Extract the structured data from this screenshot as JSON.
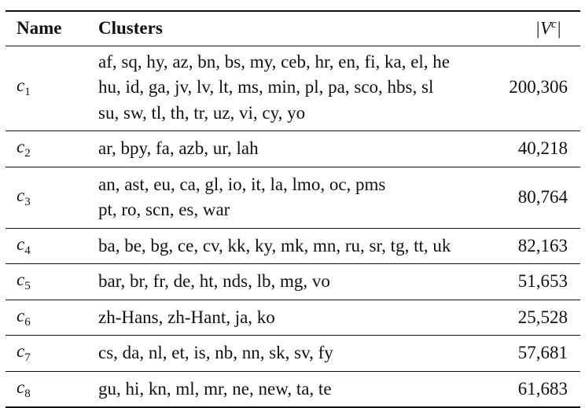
{
  "header": {
    "name": "Name",
    "clusters": "Clusters",
    "size_base": "|V",
    "size_sup": "c",
    "size_end": "|"
  },
  "rows": [
    {
      "sym": "c",
      "sub": "1",
      "lines": [
        "af, sq, hy, az, bn, bs, my, ceb, hr, en, fi, ka, el, he",
        "hu, id, ga, jv, lv, lt, ms, min, pl, pa, sco, hbs, sl",
        "su, sw, tl, th, tr, uz, vi, cy, yo"
      ],
      "size": "200,306"
    },
    {
      "sym": "c",
      "sub": "2",
      "lines": [
        "ar, bpy, fa, azb, ur, lah"
      ],
      "size": "40,218"
    },
    {
      "sym": "c",
      "sub": "3",
      "lines": [
        "an, ast, eu, ca, gl, io, it, la, lmo, oc, pms",
        "pt, ro, scn, es, war"
      ],
      "size": "80,764"
    },
    {
      "sym": "c",
      "sub": "4",
      "lines": [
        "ba, be, bg, ce, cv, kk, ky, mk, mn, ru, sr, tg, tt, uk"
      ],
      "size": "82,163"
    },
    {
      "sym": "c",
      "sub": "5",
      "lines": [
        "bar, br, fr, de, ht, nds, lb, mg, vo"
      ],
      "size": "51,653"
    },
    {
      "sym": "c",
      "sub": "6",
      "lines": [
        "zh-Hans, zh-Hant, ja, ko"
      ],
      "size": "25,528"
    },
    {
      "sym": "c",
      "sub": "7",
      "lines": [
        "cs, da, nl, et, is, nb, nn, sk, sv, fy"
      ],
      "size": "57,681"
    },
    {
      "sym": "c",
      "sub": "8",
      "lines": [
        "gu, hi, kn, ml, mr, ne, new, ta, te"
      ],
      "size": "61,683"
    }
  ]
}
